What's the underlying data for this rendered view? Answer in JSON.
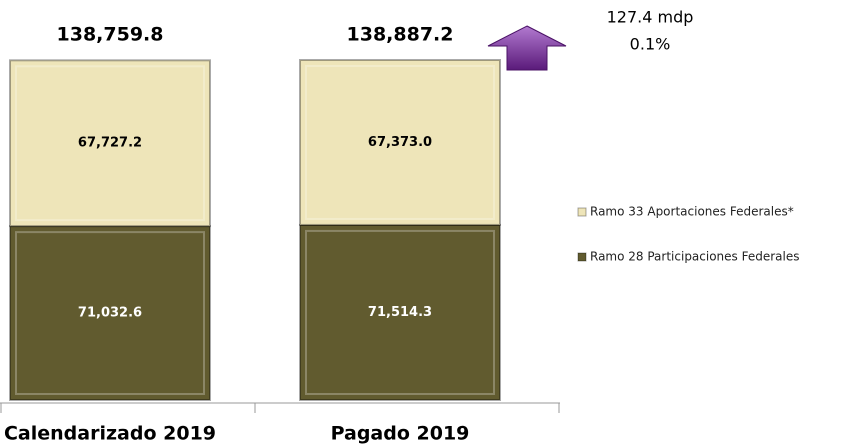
{
  "chart_data": {
    "type": "stacked_bar",
    "categories": [
      "Calendarizado 2019",
      "Pagado 2019"
    ],
    "series": [
      {
        "name": "Ramo 28 Participaciones Federales",
        "color": "#615b2f",
        "label_color": "#ffffff",
        "values": [
          71032.6,
          71514.3
        ],
        "value_labels": [
          "71,032.6",
          "71,514.3"
        ]
      },
      {
        "name": "Ramo 33 Aportaciones Federales*",
        "color": "#eee5b9",
        "label_color": "#000000",
        "values": [
          67727.2,
          67373.0
        ],
        "value_labels": [
          "67,727.2",
          "67,373.0"
        ]
      }
    ],
    "totals": [
      138759.8,
      138887.2
    ],
    "total_labels": [
      "138,759.8",
      "138,887.2"
    ],
    "annotation": {
      "lines": [
        "127.4 mdp",
        "0.1%"
      ],
      "color": "#7a2a9a"
    }
  }
}
